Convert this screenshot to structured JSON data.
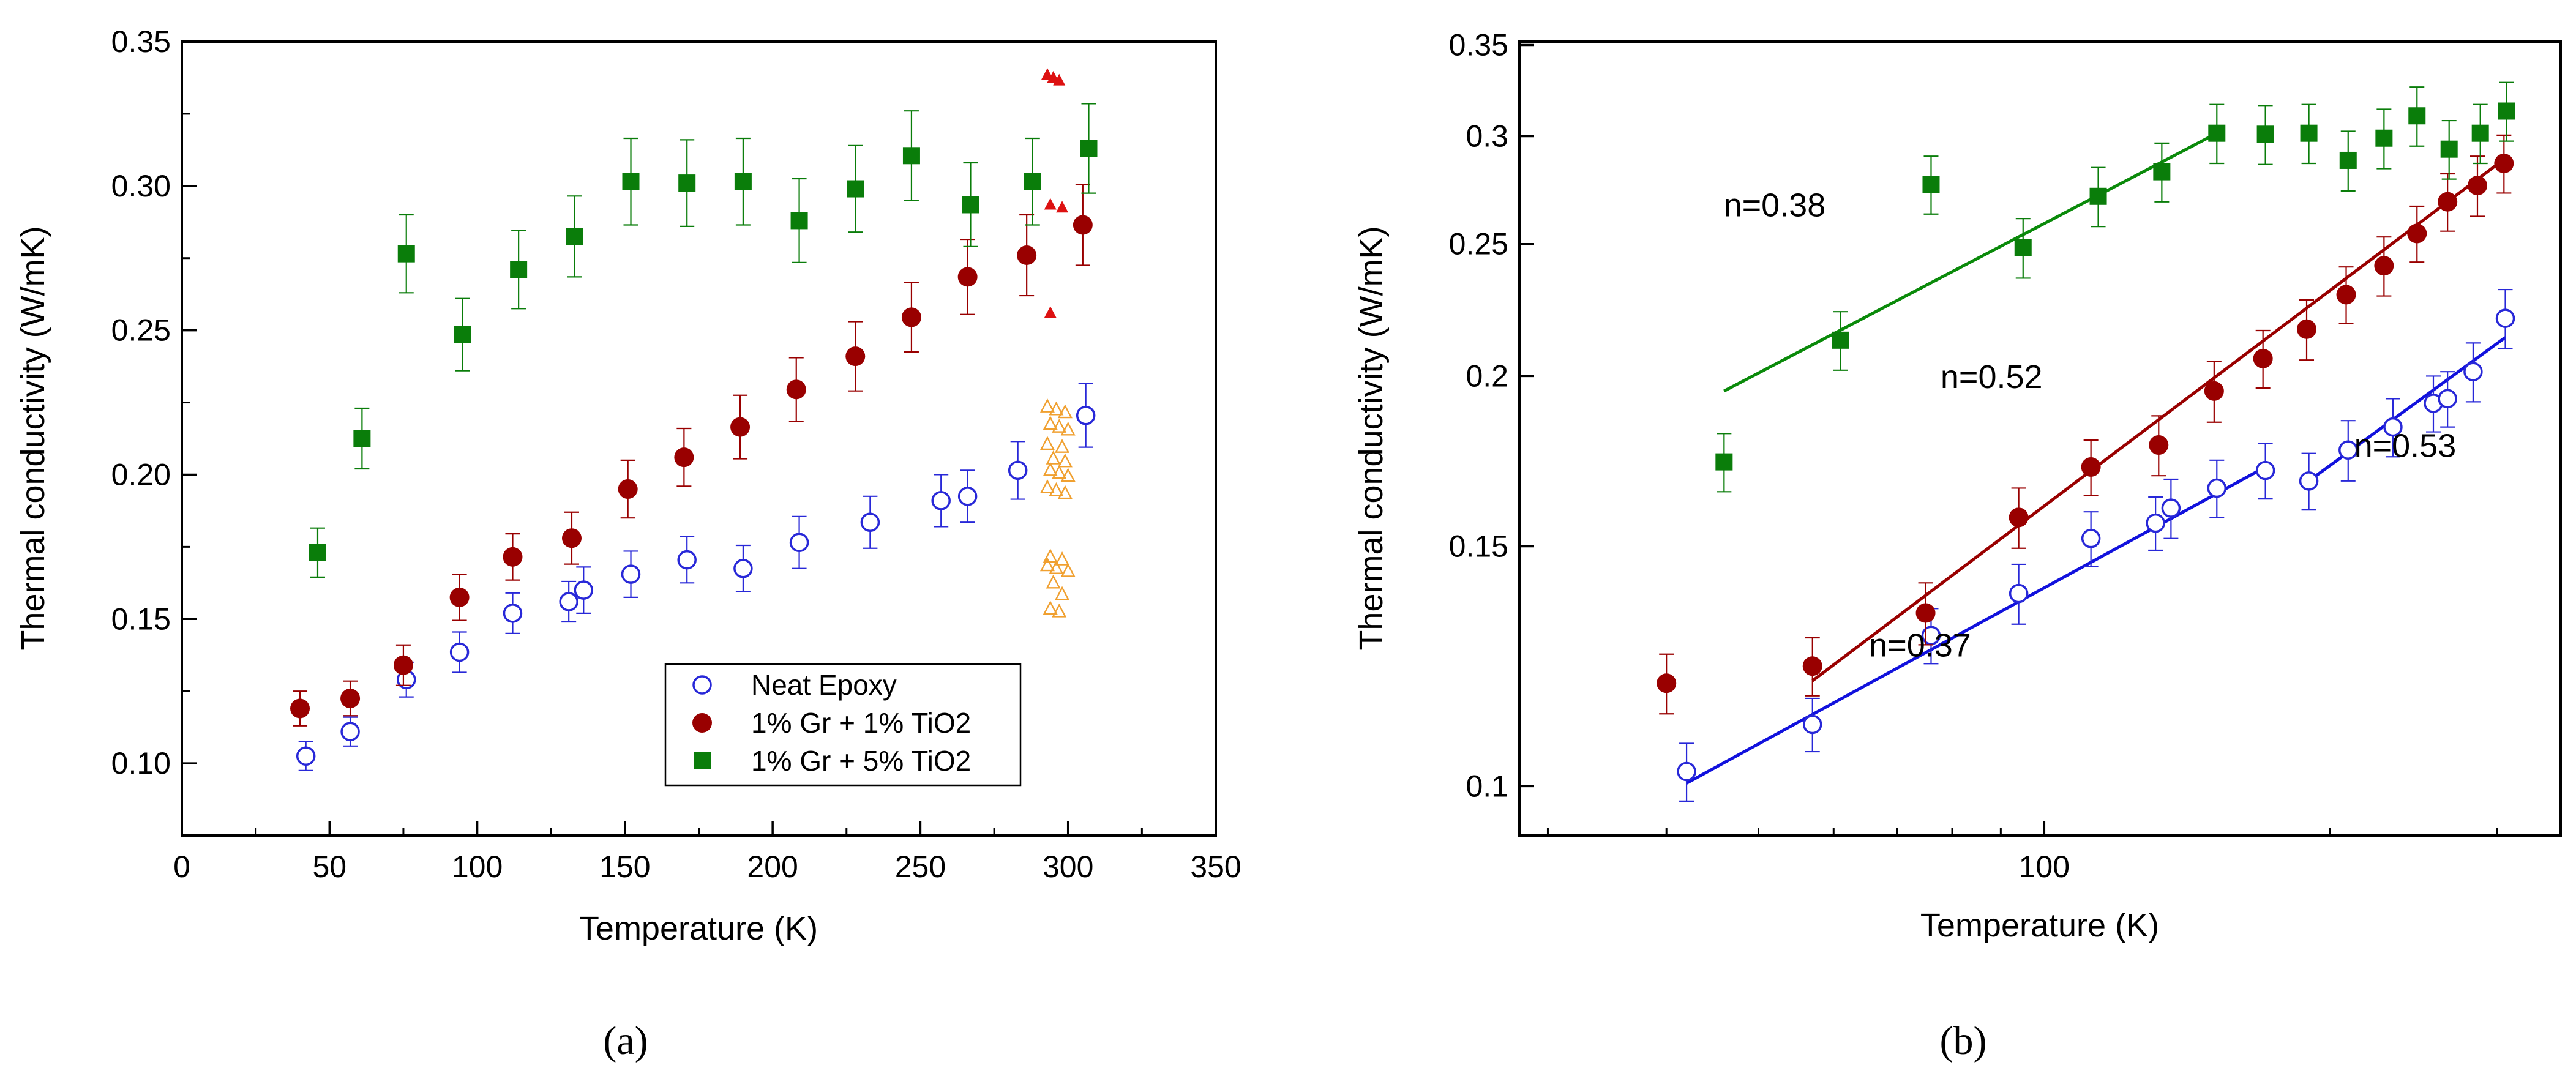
{
  "chart_data": [
    {
      "type": "scatter",
      "panel_label": "(a)",
      "xlabel": "Temperature (K)",
      "ylabel": "Thermal conductivity (W/mK)",
      "xlim": [
        0,
        350
      ],
      "ylim": [
        0.075,
        0.35
      ],
      "x_scale": "linear",
      "y_scale": "linear",
      "xticks": [
        "0",
        "50",
        "100",
        "150",
        "200",
        "250",
        "300",
        "350"
      ],
      "yticks": [
        "0.10",
        "0.15",
        "0.20",
        "0.25",
        "0.30",
        "0.35"
      ],
      "legend_position": "bottom-right",
      "series": [
        {
          "name": "Neat Epoxy",
          "color": "#2828d8",
          "marker": "open-circle",
          "x": [
            42,
            57,
            76,
            94,
            112,
            131,
            136,
            152,
            171,
            190,
            209,
            233,
            257,
            266,
            283,
            306
          ],
          "y": [
            0.1025,
            0.111,
            0.129,
            0.1385,
            0.152,
            0.156,
            0.16,
            0.1655,
            0.1705,
            0.1675,
            0.1765,
            0.1835,
            0.191,
            0.1925,
            0.2015,
            0.2205
          ],
          "err": [
            0.005,
            0.005,
            0.006,
            0.007,
            0.007,
            0.007,
            0.008,
            0.008,
            0.008,
            0.008,
            0.009,
            0.009,
            0.009,
            0.009,
            0.01,
            0.011
          ]
        },
        {
          "name": "1% Gr + 1% TiO2",
          "color": "#990000",
          "marker": "filled-circle",
          "x": [
            40,
            57,
            75,
            94,
            112,
            132,
            151,
            170,
            189,
            208,
            228,
            247,
            266,
            286,
            305
          ],
          "y": [
            0.119,
            0.1225,
            0.134,
            0.1575,
            0.1715,
            0.178,
            0.195,
            0.206,
            0.2165,
            0.2295,
            0.241,
            0.2545,
            0.2685,
            0.276,
            0.2865
          ],
          "err": [
            0.006,
            0.006,
            0.007,
            0.008,
            0.008,
            0.009,
            0.01,
            0.01,
            0.011,
            0.011,
            0.012,
            0.012,
            0.013,
            0.014,
            0.014
          ]
        },
        {
          "name": "1% Gr + 5% TiO2",
          "color": "#0a7d0a",
          "marker": "filled-square",
          "x": [
            46,
            61,
            76,
            95,
            114,
            133,
            152,
            171,
            190,
            209,
            228,
            247,
            267,
            288,
            307
          ],
          "y": [
            0.173,
            0.2125,
            0.2765,
            0.2485,
            0.271,
            0.2825,
            0.3015,
            0.301,
            0.3015,
            0.288,
            0.299,
            0.3105,
            0.2935,
            0.3015,
            0.313
          ],
          "err": [
            0.0085,
            0.0105,
            0.0135,
            0.0125,
            0.0135,
            0.014,
            0.015,
            0.015,
            0.015,
            0.0145,
            0.015,
            0.0155,
            0.0145,
            0.015,
            0.0155
          ]
        },
        {
          "name": "",
          "color": "#dd1111",
          "marker": "filled-triangle",
          "x": [
            293,
            295,
            297,
            294,
            298,
            294
          ],
          "y": [
            0.3385,
            0.3375,
            0.3365,
            0.2935,
            0.2925,
            0.256
          ],
          "err": []
        },
        {
          "name": "",
          "color": "#f0a030",
          "marker": "open-triangle",
          "x": [
            293,
            296,
            299,
            294,
            297,
            300,
            293,
            298,
            295,
            299,
            294,
            297,
            300,
            293,
            296,
            299,
            294,
            298,
            293,
            296,
            300,
            295,
            298,
            294,
            297
          ],
          "y": [
            0.2235,
            0.2225,
            0.2215,
            0.2175,
            0.2165,
            0.2155,
            0.2105,
            0.2095,
            0.2055,
            0.2045,
            0.2015,
            0.2005,
            0.1995,
            0.1955,
            0.1945,
            0.1935,
            0.1715,
            0.1705,
            0.1685,
            0.1675,
            0.1665,
            0.1625,
            0.1585,
            0.1535,
            0.1525
          ],
          "err": []
        }
      ]
    },
    {
      "type": "scatter",
      "panel_label": "(b)",
      "xlabel": "Temperature (K)",
      "ylabel": "Thermal conductivity (W/mK)",
      "xlim": [
        28,
        350
      ],
      "ylim": [
        0.092,
        0.352
      ],
      "x_scale": "log",
      "y_scale": "log",
      "xticks": [
        "100"
      ],
      "yticks": [
        "0.1",
        "0.15",
        "0.2",
        "0.25",
        "0.3",
        "0.35"
      ],
      "series": [
        {
          "name": "Neat Epoxy",
          "color": "#2828d8",
          "marker": "open-circle",
          "x": [
            42,
            57,
            76,
            94,
            112,
            131,
            136,
            152,
            171,
            190,
            209,
            233,
            257,
            266,
            283,
            306
          ],
          "y": [
            0.1025,
            0.111,
            0.129,
            0.1385,
            0.152,
            0.156,
            0.16,
            0.1655,
            0.1705,
            0.1675,
            0.1765,
            0.1835,
            0.191,
            0.1925,
            0.2015,
            0.2205
          ],
          "err": [
            0.005,
            0.005,
            0.006,
            0.007,
            0.007,
            0.007,
            0.008,
            0.008,
            0.008,
            0.008,
            0.009,
            0.009,
            0.009,
            0.009,
            0.01,
            0.011
          ]
        },
        {
          "name": "1% Gr + 1% TiO2",
          "color": "#990000",
          "marker": "filled-circle",
          "x": [
            40,
            57,
            75,
            94,
            112,
            132,
            151,
            170,
            189,
            208,
            228,
            247,
            266,
            286,
            305
          ],
          "y": [
            0.119,
            0.1225,
            0.134,
            0.1575,
            0.1715,
            0.178,
            0.195,
            0.206,
            0.2165,
            0.2295,
            0.241,
            0.2545,
            0.2685,
            0.276,
            0.2865
          ],
          "err": [
            0.006,
            0.006,
            0.007,
            0.008,
            0.008,
            0.009,
            0.01,
            0.01,
            0.011,
            0.011,
            0.012,
            0.012,
            0.013,
            0.014,
            0.014
          ]
        },
        {
          "name": "1% Gr + 5% TiO2",
          "color": "#0a7d0a",
          "marker": "filled-square",
          "x": [
            46,
            61,
            76,
            95,
            114,
            133,
            152,
            171,
            190,
            209,
            228,
            247,
            267,
            288,
            307
          ],
          "y": [
            0.173,
            0.2125,
            0.2765,
            0.2485,
            0.271,
            0.2825,
            0.3015,
            0.301,
            0.3015,
            0.288,
            0.299,
            0.3105,
            0.2935,
            0.3015,
            0.313
          ],
          "err": [
            0.0085,
            0.0105,
            0.0135,
            0.0125,
            0.0135,
            0.014,
            0.015,
            0.015,
            0.015,
            0.0145,
            0.015,
            0.0155,
            0.0145,
            0.015,
            0.0155
          ]
        }
      ],
      "fits": [
        {
          "series": "1% Gr + 5% TiO2",
          "color": "#0a8a0a",
          "x": [
            46,
            152
          ],
          "y": [
            0.195,
            0.3015
          ]
        },
        {
          "series": "1% Gr + 1% TiO2",
          "color": "#990000",
          "x": [
            57,
            306
          ],
          "y": [
            0.1195,
            0.289
          ]
        },
        {
          "series": "Neat Epoxy",
          "color": "#1111dd",
          "x": [
            42,
            171
          ],
          "y": [
            0.1005,
            0.1715
          ]
        },
        {
          "series": "Neat Epoxy",
          "color": "#1111dd",
          "x": [
            190,
            306
          ],
          "y": [
            0.1675,
            0.2135
          ]
        }
      ],
      "annotations": [
        {
          "text": "n=0.38",
          "x": 52,
          "y": 0.262
        },
        {
          "text": "n=0.52",
          "x": 88,
          "y": 0.196
        },
        {
          "text": "n=0.37",
          "x": 74,
          "y": 0.1245
        },
        {
          "text": "n=0.53",
          "x": 240,
          "y": 0.1745
        }
      ]
    }
  ]
}
